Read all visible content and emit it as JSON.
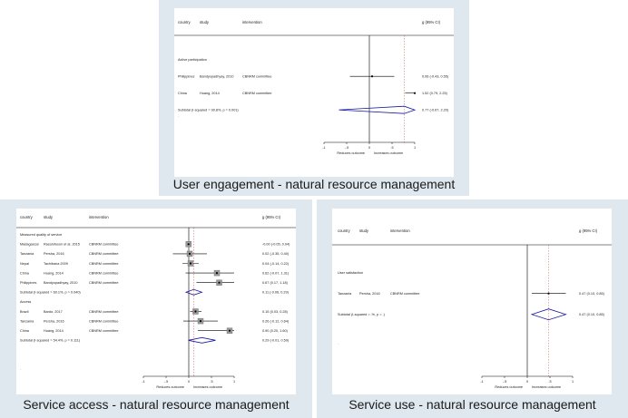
{
  "panels": [
    {
      "caption": "User engagement - natural resource management",
      "headers": {
        "country": "country",
        "study": "study",
        "intervention": "intervention",
        "effect": "g (95% CI)"
      },
      "xlabels": {
        "left": "Reduces outcome",
        "right": "Increases outcome"
      },
      "dot": ".",
      "colors": {
        "diamond": "#1a1aa0",
        "line": "#000000"
      }
    },
    {
      "caption": "Service access - natural resource management",
      "headers": {
        "country": "country",
        "study": "study",
        "intervention": "intervention",
        "effect": "g (95% CI)"
      },
      "xlabels": {
        "left": "Reduces outcome",
        "right": "Increases outcome"
      },
      "dot": ".",
      "colors": {
        "diamond": "#1a1aa0",
        "line": "#000000"
      }
    },
    {
      "caption": "Service use - natural resource management",
      "headers": {
        "country": "country",
        "study": "study",
        "intervention": "intervention",
        "effect": "g (95% CI)"
      },
      "xlabels": {
        "left": "Reduces outcome",
        "right": "Increases outcome"
      },
      "dot": ".",
      "colors": {
        "diamond": "#1a1aa0",
        "line": "#000000"
      }
    }
  ],
  "chart_data": [
    {
      "type": "forest",
      "title": "User engagement - natural resource management",
      "xticks": [
        -1,
        -0.5,
        0,
        0.5,
        1
      ],
      "tick_labels": [
        "-1",
        "-.5",
        "0",
        ".5",
        "1"
      ],
      "xlim": [
        -1,
        1
      ],
      "rows": [
        {
          "kind": "group",
          "label": "Active participation"
        },
        {
          "kind": "study",
          "country": "Philippines",
          "study": "Bandyopadhyay, 2010",
          "intervention": "CBNRM committee",
          "g": 0.06,
          "lo": -0.43,
          "hi": 0.55,
          "label": "0.06 (-0.43, 0.55)"
        },
        {
          "kind": "study",
          "country": "China",
          "study": "Huang, 2014",
          "intervention": "CBNRM committee",
          "g": 1.52,
          "lo": 0.79,
          "hi": 2.25,
          "label": "1.52 (0.79, 2.25)"
        },
        {
          "kind": "subtotal",
          "text": "Subtotal  (I-squared = 90.8%, p = 0.001)",
          "g": 0.77,
          "lo": -0.67,
          "hi": 2.2,
          "label": "0.77 (-0.67, 2.20)"
        }
      ]
    },
    {
      "type": "forest",
      "title": "Service access - natural resource management",
      "xticks": [
        -1,
        -0.5,
        0,
        0.5,
        1
      ],
      "tick_labels": [
        "-1",
        "-.5",
        "0",
        ".5",
        "1"
      ],
      "xlim": [
        -1,
        1
      ],
      "rows": [
        {
          "kind": "group",
          "label": "Measured quality of service"
        },
        {
          "kind": "study",
          "country": "Madagascar",
          "study": "Rasolofoson et al. 2015",
          "intervention": "CBNRM committee",
          "g": -0.005,
          "lo": -0.05,
          "hi": 0.04,
          "label": "-0.00 (-0.05, 0.04)"
        },
        {
          "kind": "study",
          "country": "Tanzania",
          "study": "Persha, 2016",
          "intervention": "CBNRM committee",
          "g": 0.02,
          "lo": -0.35,
          "hi": 0.4,
          "label": "0.02 (-0.35, 0.40)"
        },
        {
          "kind": "study",
          "country": "Nepal",
          "study": "Tachibana 2009",
          "intervention": "CBNRM committee",
          "g": 0.04,
          "lo": -0.14,
          "hi": 0.22,
          "label": "0.04 (-0.14, 0.22)"
        },
        {
          "kind": "study",
          "country": "China",
          "study": "Huang, 2014",
          "intervention": "CBNRM committee",
          "g": 0.62,
          "lo": -0.07,
          "hi": 1.31,
          "label": "0.62 (-0.07, 1.31)"
        },
        {
          "kind": "study",
          "country": "Philippines",
          "study": "Bandyopadhyay, 2010",
          "intervention": "CBNRM committee",
          "g": 0.67,
          "lo": 0.17,
          "hi": 1.18,
          "label": "0.67 (0.17, 1.18)"
        },
        {
          "kind": "subtotal",
          "text": "Subtotal  (I-squared = 60.1%, p = 0.040)",
          "g": 0.11,
          "lo": -0.06,
          "hi": 0.29,
          "label": "0.11 (-0.06, 0.29)"
        },
        {
          "kind": "group",
          "label": "Access"
        },
        {
          "kind": "study",
          "country": "Brazil",
          "study": "Bardo, 2017",
          "intervention": "CBNRM committee",
          "g": 0.15,
          "lo": 0.03,
          "hi": 0.28,
          "label": "0.15 (0.03, 0.28)"
        },
        {
          "kind": "study",
          "country": "Tanzania",
          "study": "Persha, 2016",
          "intervention": "CBNRM committee",
          "g": 0.26,
          "lo": -0.12,
          "hi": 0.64,
          "label": "0.26 (-0.12, 0.64)"
        },
        {
          "kind": "study",
          "country": "China",
          "study": "Huang, 2014",
          "intervention": "CBNRM committee",
          "g": 0.9,
          "lo": 0.2,
          "hi": 1.6,
          "label": "0.90 (0.20, 1.60)"
        },
        {
          "kind": "subtotal",
          "text": "Subtotal  (I-squared = 54.4%, p = 0.111)",
          "g": 0.29,
          "lo": -0.01,
          "hi": 0.59,
          "label": "0.29 (-0.01, 0.59)"
        }
      ]
    },
    {
      "type": "forest",
      "title": "Service use - natural resource management",
      "xticks": [
        -1,
        -0.5,
        0,
        0.5,
        1
      ],
      "tick_labels": [
        "-1",
        "-.5",
        "0",
        ".5",
        "1"
      ],
      "xlim": [
        -1,
        1
      ],
      "rows": [
        {
          "kind": "group",
          "label": "User satisfaction"
        },
        {
          "kind": "study",
          "country": "Tanzania",
          "study": "Persha, 2016",
          "intervention": "CBNRM committee",
          "g": 0.47,
          "lo": 0.1,
          "hi": 0.85,
          "label": "0.47 (0.10, 0.85)"
        },
        {
          "kind": "subtotal",
          "text": "Subtotal  (I-squared = .%, p = .)",
          "g": 0.47,
          "lo": 0.1,
          "hi": 0.85,
          "label": "0.47 (0.10, 0.85)"
        }
      ]
    }
  ]
}
